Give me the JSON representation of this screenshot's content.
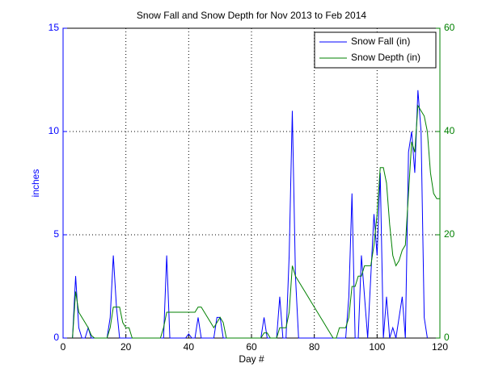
{
  "chart_data": {
    "type": "line",
    "title": "Snow Fall and Snow Depth for Nov 2013 to Feb 2014",
    "xlabel": "Day #",
    "ylabel": "inches",
    "x": [
      3,
      4,
      5,
      6,
      7,
      8,
      9,
      10,
      11,
      12,
      13,
      14,
      15,
      16,
      17,
      18,
      19,
      20,
      21,
      22,
      23,
      24,
      25,
      26,
      27,
      28,
      29,
      30,
      31,
      32,
      33,
      34,
      35,
      36,
      37,
      38,
      39,
      40,
      41,
      42,
      43,
      44,
      45,
      46,
      47,
      48,
      49,
      50,
      51,
      52,
      53,
      54,
      55,
      56,
      57,
      58,
      59,
      60,
      61,
      62,
      63,
      64,
      65,
      66,
      67,
      68,
      69,
      70,
      71,
      72,
      73,
      74,
      75,
      76,
      77,
      78,
      79,
      80,
      81,
      82,
      83,
      84,
      85,
      86,
      87,
      88,
      89,
      90,
      91,
      92,
      93,
      94,
      95,
      96,
      97,
      98,
      99,
      100,
      101,
      102,
      103,
      104,
      105,
      106,
      107,
      108,
      109,
      110,
      111,
      112,
      113,
      114,
      115,
      116,
      117,
      118,
      119,
      120
    ],
    "series": [
      {
        "name": "Snow Fall (in)",
        "color": "#0000ff",
        "axis": "y",
        "values": [
          0,
          3,
          0.5,
          0,
          0,
          0.5,
          0,
          0,
          0,
          0,
          0,
          0,
          1,
          4,
          1.5,
          0,
          0,
          0,
          0,
          0,
          0,
          0,
          0,
          0,
          0,
          0,
          0,
          0,
          0,
          0,
          4,
          0,
          0,
          0,
          0,
          0,
          0,
          0.2,
          0,
          0,
          1,
          0,
          0,
          0,
          0,
          0,
          1,
          1,
          0,
          0,
          0,
          0,
          0,
          0,
          0,
          0,
          0,
          0,
          0,
          0,
          0,
          1,
          0,
          0,
          0,
          0,
          2,
          0,
          0,
          4,
          11,
          3,
          0,
          0,
          0,
          0,
          0,
          0,
          0,
          0,
          0,
          0,
          0,
          0,
          0,
          0,
          0,
          0,
          2,
          7,
          0,
          0,
          4,
          2,
          0,
          3,
          6,
          4,
          8,
          0,
          2,
          0,
          0.5,
          0,
          1,
          2,
          0,
          9,
          10,
          8,
          12,
          10,
          1,
          0,
          null,
          null,
          null,
          null
        ]
      },
      {
        "name": "Snow Depth (in)",
        "color": "#008000",
        "axis": "y2",
        "values": [
          0,
          9,
          5,
          4,
          3,
          2,
          0.5,
          0,
          0,
          0,
          0,
          0,
          2,
          6,
          6,
          6,
          3,
          2,
          2,
          0,
          0,
          0,
          0,
          0,
          0,
          0,
          0,
          0,
          0,
          2,
          5,
          5,
          5,
          5,
          5,
          5,
          5,
          5,
          5,
          5,
          6,
          6,
          5,
          4,
          3,
          2,
          3,
          4,
          3,
          0,
          0,
          0,
          0,
          0,
          0,
          0,
          0,
          0,
          0,
          0,
          0,
          1,
          1,
          0,
          0,
          0,
          2,
          2,
          2,
          5,
          14,
          12,
          11,
          10,
          9,
          8,
          7,
          6,
          5,
          4,
          3,
          2,
          1,
          0,
          0,
          2,
          2,
          2,
          4,
          10,
          10,
          12,
          12,
          14,
          14,
          14,
          18,
          24,
          33,
          33,
          30,
          22,
          16,
          14,
          15,
          17,
          18,
          28,
          38,
          36,
          45,
          44,
          43,
          40,
          32,
          28,
          27,
          27
        ]
      }
    ],
    "xlim": [
      0,
      120
    ],
    "xticks": [
      0,
      20,
      40,
      60,
      80,
      100,
      120
    ],
    "ylim": [
      0,
      15
    ],
    "yticks": [
      0,
      5,
      10,
      15
    ],
    "y2lim": [
      0,
      60
    ],
    "y2ticks": [
      0,
      20,
      40,
      60
    ],
    "grid": true,
    "legend": "upper-right"
  }
}
